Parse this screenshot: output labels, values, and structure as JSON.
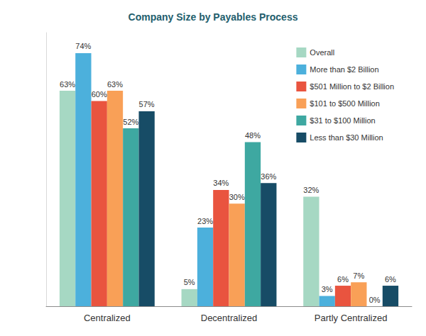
{
  "chart_data": {
    "type": "bar",
    "title": "Company Size by Payables Process",
    "categories": [
      "Centralized",
      "Decentralized",
      "Partly Centralized"
    ],
    "series": [
      {
        "name": "Overall",
        "color": "#a6d8c3",
        "values": [
          63,
          5,
          32
        ],
        "value_labels": [
          "63%",
          "5%",
          "32%"
        ]
      },
      {
        "name": "More than $2 Billion",
        "color": "#4cb0dc",
        "values": [
          74,
          23,
          3
        ],
        "value_labels": [
          "74%",
          "23%",
          "3%"
        ]
      },
      {
        "name": "$501 Million to $2 Billion",
        "color": "#e9543f",
        "values": [
          60,
          34,
          6
        ],
        "value_labels": [
          "60%",
          "34%",
          "6%"
        ]
      },
      {
        "name": "$101 to $500 Million",
        "color": "#f9a057",
        "values": [
          63,
          30,
          7
        ],
        "value_labels": [
          "63%",
          "30%",
          "7%"
        ]
      },
      {
        "name": "$31 to $100 Million",
        "color": "#3ea8a1",
        "values": [
          52,
          48,
          0
        ],
        "value_labels": [
          "52%",
          "48%",
          "0%"
        ]
      },
      {
        "name": "Less than $30 Million",
        "color": "#174c66",
        "values": [
          57,
          36,
          6
        ],
        "value_labels": [
          "57%",
          "36%",
          "6%"
        ]
      }
    ],
    "ylim": [
      0,
      80
    ],
    "yticks": [
      0,
      80
    ],
    "grid": false,
    "legend": "top-right",
    "data_labels": true,
    "tick_labels": "x"
  }
}
